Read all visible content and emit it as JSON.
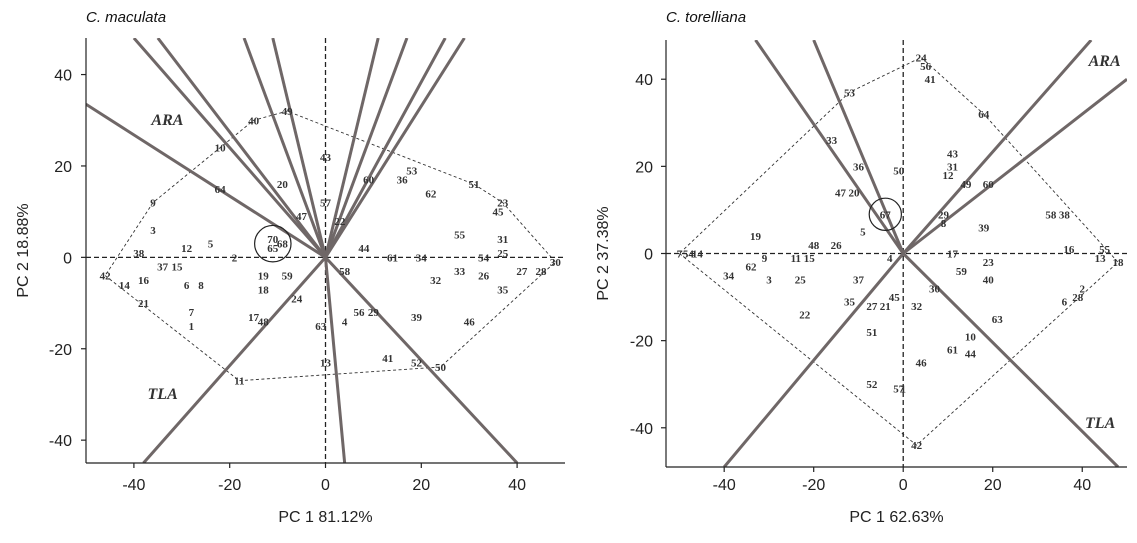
{
  "chart_data": [
    {
      "type": "scatter",
      "title": "C. maculata",
      "xlabel": "PC 1 81.12%",
      "ylabel": "PC 2 18.88%",
      "xlim": [
        -50,
        50
      ],
      "ylim": [
        -45,
        48
      ],
      "xticks": [
        -40,
        -20,
        0,
        20,
        40
      ],
      "yticks": [
        -40,
        -20,
        0,
        20,
        40
      ],
      "vectors": [
        {
          "label": "ARA",
          "end": [
            -50,
            33.5
          ]
        },
        {
          "label": "",
          "end": [
            -40,
            48
          ]
        },
        {
          "label": "",
          "end": [
            -35,
            48
          ]
        },
        {
          "label": "",
          "end": [
            -17,
            48
          ]
        },
        {
          "label": "",
          "end": [
            -11,
            48
          ]
        },
        {
          "label": "",
          "end": [
            11,
            48
          ]
        },
        {
          "label": "",
          "end": [
            17,
            48
          ]
        },
        {
          "label": "",
          "end": [
            25,
            48
          ]
        },
        {
          "label": "",
          "end": [
            29,
            48
          ]
        },
        {
          "label": "TLA",
          "end": [
            -38,
            -45
          ]
        },
        {
          "label": "",
          "end": [
            4,
            -45
          ]
        },
        {
          "label": "",
          "end": [
            40,
            -45
          ]
        }
      ],
      "circle": {
        "center": [
          -11,
          3
        ],
        "radius": 3.8
      },
      "points": [
        {
          "label": "49",
          "x": -8,
          "y": 32
        },
        {
          "label": "40",
          "x": -15,
          "y": 30
        },
        {
          "label": "10",
          "x": -22,
          "y": 24
        },
        {
          "label": "43",
          "x": 0,
          "y": 22
        },
        {
          "label": "60",
          "x": 9,
          "y": 17
        },
        {
          "label": "53",
          "x": 18,
          "y": 19
        },
        {
          "label": "51",
          "x": 31,
          "y": 16
        },
        {
          "label": "20",
          "x": -9,
          "y": 16
        },
        {
          "label": "64",
          "x": -22,
          "y": 15
        },
        {
          "label": "36",
          "x": 16,
          "y": 17
        },
        {
          "label": "62",
          "x": 22,
          "y": 14
        },
        {
          "label": "23",
          "x": 37,
          "y": 12
        },
        {
          "label": "45",
          "x": 36,
          "y": 10
        },
        {
          "label": "9",
          "x": -36,
          "y": 12
        },
        {
          "label": "57",
          "x": 0,
          "y": 12
        },
        {
          "label": "47",
          "x": -5,
          "y": 9
        },
        {
          "label": "22",
          "x": 3,
          "y": 8
        },
        {
          "label": "3",
          "x": -36,
          "y": 6
        },
        {
          "label": "55",
          "x": 28,
          "y": 5
        },
        {
          "label": "31",
          "x": 37,
          "y": 4
        },
        {
          "label": "5",
          "x": -24,
          "y": 3
        },
        {
          "label": "12",
          "x": -29,
          "y": 2
        },
        {
          "label": "38",
          "x": -39,
          "y": 1
        },
        {
          "label": "44",
          "x": 8,
          "y": 2
        },
        {
          "label": "61",
          "x": 14,
          "y": 0
        },
        {
          "label": "34",
          "x": 20,
          "y": 0
        },
        {
          "label": "54",
          "x": 33,
          "y": 0
        },
        {
          "label": "25",
          "x": 37,
          "y": 1
        },
        {
          "label": "30",
          "x": 48,
          "y": -1
        },
        {
          "label": "2",
          "x": -19,
          "y": 0
        },
        {
          "label": "37",
          "x": -34,
          "y": -2
        },
        {
          "label": "15",
          "x": -31,
          "y": -2
        },
        {
          "label": "42",
          "x": -46,
          "y": -4
        },
        {
          "label": "16",
          "x": -38,
          "y": -5
        },
        {
          "label": "14",
          "x": -42,
          "y": -6
        },
        {
          "label": "19",
          "x": -13,
          "y": -4
        },
        {
          "label": "59",
          "x": -8,
          "y": -4
        },
        {
          "label": "58",
          "x": 4,
          "y": -3
        },
        {
          "label": "27",
          "x": 41,
          "y": -3
        },
        {
          "label": "28",
          "x": 45,
          "y": -3
        },
        {
          "label": "33",
          "x": 28,
          "y": -3
        },
        {
          "label": "26",
          "x": 33,
          "y": -4
        },
        {
          "label": "32",
          "x": 23,
          "y": -5
        },
        {
          "label": "35",
          "x": 37,
          "y": -7
        },
        {
          "label": "6",
          "x": -29,
          "y": -6
        },
        {
          "label": "8",
          "x": -26,
          "y": -6
        },
        {
          "label": "18",
          "x": -13,
          "y": -7
        },
        {
          "label": "24",
          "x": -6,
          "y": -9
        },
        {
          "label": "21",
          "x": -38,
          "y": -10
        },
        {
          "label": "7",
          "x": -28,
          "y": -12
        },
        {
          "label": "1",
          "x": -28,
          "y": -15
        },
        {
          "label": "17",
          "x": -15,
          "y": -13
        },
        {
          "label": "48",
          "x": -13,
          "y": -14
        },
        {
          "label": "63",
          "x": -1,
          "y": -15
        },
        {
          "label": "4",
          "x": 4,
          "y": -14
        },
        {
          "label": "56",
          "x": 7,
          "y": -12
        },
        {
          "label": "29",
          "x": 10,
          "y": -12
        },
        {
          "label": "39",
          "x": 19,
          "y": -13
        },
        {
          "label": "46",
          "x": 30,
          "y": -14
        },
        {
          "label": "13",
          "x": 0,
          "y": -23
        },
        {
          "label": "41",
          "x": 13,
          "y": -22
        },
        {
          "label": "52",
          "x": 19,
          "y": -23
        },
        {
          "label": "50",
          "x": 24,
          "y": -24
        },
        {
          "label": "11",
          "x": -18,
          "y": -27
        },
        {
          "label": "70",
          "x": -11,
          "y": 4
        },
        {
          "label": "65",
          "x": -11,
          "y": 2
        },
        {
          "label": "68",
          "x": -9,
          "y": 3
        }
      ]
    },
    {
      "type": "scatter",
      "title": "C. torelliana",
      "xlabel": "PC 1 62.63%",
      "ylabel": "PC 2 37.38%",
      "xlim": [
        -53,
        50
      ],
      "ylim": [
        -49,
        49
      ],
      "xticks": [
        -40,
        -20,
        0,
        20,
        40
      ],
      "yticks": [
        -40,
        -20,
        0,
        20,
        40
      ],
      "vectors": [
        {
          "label": "",
          "end": [
            -33,
            49
          ]
        },
        {
          "label": "",
          "end": [
            -20,
            49
          ]
        },
        {
          "label": "ARA",
          "end": [
            42,
            49
          ]
        },
        {
          "label": "",
          "end": [
            50,
            40
          ]
        },
        {
          "label": "",
          "end": [
            -40,
            -49
          ]
        },
        {
          "label": "TLA",
          "end": [
            48,
            -49
          ]
        }
      ],
      "circle": {
        "center": [
          -4,
          9
        ],
        "radius": 3.6
      },
      "points": [
        {
          "label": "24",
          "x": 4,
          "y": 45
        },
        {
          "label": "56",
          "x": 5,
          "y": 43
        },
        {
          "label": "41",
          "x": 6,
          "y": 40
        },
        {
          "label": "53",
          "x": -12,
          "y": 37
        },
        {
          "label": "64",
          "x": 18,
          "y": 32
        },
        {
          "label": "33",
          "x": -16,
          "y": 26
        },
        {
          "label": "43",
          "x": 11,
          "y": 23
        },
        {
          "label": "31",
          "x": 11,
          "y": 20
        },
        {
          "label": "36",
          "x": -10,
          "y": 20
        },
        {
          "label": "50",
          "x": -1,
          "y": 19
        },
        {
          "label": "12",
          "x": 10,
          "y": 18
        },
        {
          "label": "49",
          "x": 14,
          "y": 16
        },
        {
          "label": "60",
          "x": 19,
          "y": 16
        },
        {
          "label": "47",
          "x": -14,
          "y": 14
        },
        {
          "label": "20",
          "x": -11,
          "y": 14
        },
        {
          "label": "58",
          "x": 33,
          "y": 9
        },
        {
          "label": "38",
          "x": 36,
          "y": 9
        },
        {
          "label": "29",
          "x": 9,
          "y": 9
        },
        {
          "label": "8",
          "x": 9,
          "y": 7
        },
        {
          "label": "39",
          "x": 18,
          "y": 6
        },
        {
          "label": "67",
          "x": -4,
          "y": 9
        },
        {
          "label": "19",
          "x": -33,
          "y": 4
        },
        {
          "label": "48",
          "x": -20,
          "y": 2
        },
        {
          "label": "26",
          "x": -15,
          "y": 2
        },
        {
          "label": "5",
          "x": -9,
          "y": 5
        },
        {
          "label": "7",
          "x": -50,
          "y": 0
        },
        {
          "label": "54",
          "x": -48,
          "y": 0
        },
        {
          "label": "14",
          "x": -46,
          "y": 0
        },
        {
          "label": "11",
          "x": -24,
          "y": -1
        },
        {
          "label": "15",
          "x": -21,
          "y": -1
        },
        {
          "label": "9",
          "x": -31,
          "y": -1
        },
        {
          "label": "4",
          "x": -3,
          "y": -1
        },
        {
          "label": "17",
          "x": 11,
          "y": 0
        },
        {
          "label": "16",
          "x": 37,
          "y": 1
        },
        {
          "label": "55",
          "x": 45,
          "y": 1
        },
        {
          "label": "13",
          "x": 44,
          "y": -1
        },
        {
          "label": "18",
          "x": 48,
          "y": -2
        },
        {
          "label": "62",
          "x": -34,
          "y": -3
        },
        {
          "label": "23",
          "x": 19,
          "y": -2
        },
        {
          "label": "59",
          "x": 13,
          "y": -4
        },
        {
          "label": "34",
          "x": -39,
          "y": -5
        },
        {
          "label": "3",
          "x": -30,
          "y": -6
        },
        {
          "label": "25",
          "x": -23,
          "y": -6
        },
        {
          "label": "37",
          "x": -10,
          "y": -6
        },
        {
          "label": "40",
          "x": 19,
          "y": -6
        },
        {
          "label": "2",
          "x": 40,
          "y": -8
        },
        {
          "label": "28",
          "x": 39,
          "y": -10
        },
        {
          "label": "6",
          "x": 36,
          "y": -11
        },
        {
          "label": "30",
          "x": 7,
          "y": -8
        },
        {
          "label": "45",
          "x": -2,
          "y": -10
        },
        {
          "label": "35",
          "x": -12,
          "y": -11
        },
        {
          "label": "27",
          "x": -7,
          "y": -12
        },
        {
          "label": "21",
          "x": -4,
          "y": -12
        },
        {
          "label": "32",
          "x": 3,
          "y": -12
        },
        {
          "label": "22",
          "x": -22,
          "y": -14
        },
        {
          "label": "63",
          "x": 21,
          "y": -15
        },
        {
          "label": "51",
          "x": -7,
          "y": -18
        },
        {
          "label": "10",
          "x": 15,
          "y": -19
        },
        {
          "label": "61",
          "x": 11,
          "y": -22
        },
        {
          "label": "44",
          "x": 15,
          "y": -23
        },
        {
          "label": "46",
          "x": 4,
          "y": -25
        },
        {
          "label": "52",
          "x": -7,
          "y": -30
        },
        {
          "label": "57",
          "x": -1,
          "y": -31
        },
        {
          "label": "1",
          "x": 0,
          "y": -31
        },
        {
          "label": "42",
          "x": 3,
          "y": -44
        }
      ]
    }
  ]
}
